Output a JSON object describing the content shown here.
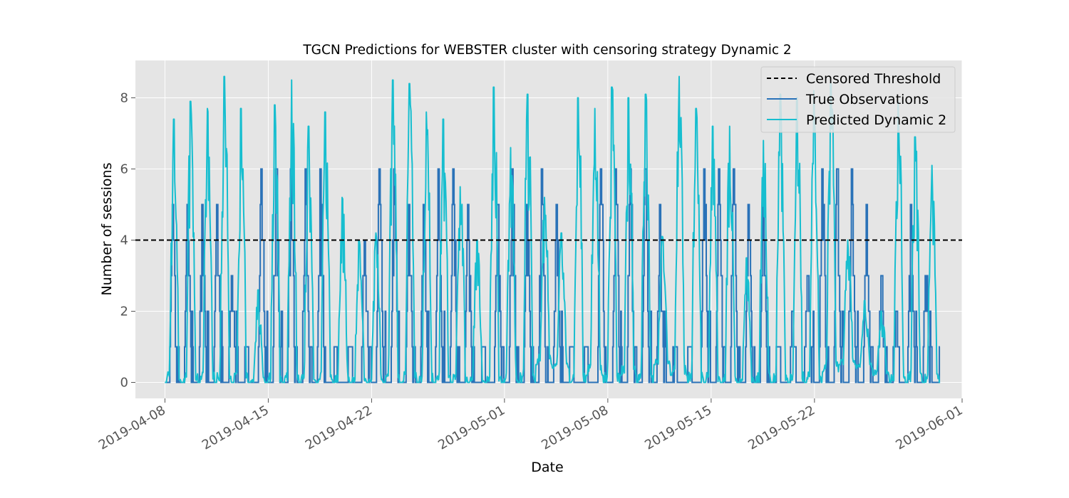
{
  "chart_data": {
    "type": "line",
    "title": "TGCN Predictions for WEBSTER cluster with censoring strategy Dynamic 2",
    "xlabel": "Date",
    "ylabel": "Number of sessions",
    "x_range": [
      "2019-04-06",
      "2019-06-01"
    ],
    "ylim": [
      -0.45,
      9.05
    ],
    "x_ticks": [
      "2019-04-08",
      "2019-04-15",
      "2019-04-22",
      "2019-05-01",
      "2019-05-08",
      "2019-05-15",
      "2019-05-22",
      "2019-06-01"
    ],
    "y_ticks": [
      0,
      2,
      4,
      6,
      8
    ],
    "y_tick_labels": [
      "0",
      "2",
      "4",
      "6",
      "8"
    ],
    "grid": true,
    "legend_position": "top-right",
    "censored_threshold": 4,
    "data_start": "2019-04-08",
    "data_end": "2019-05-30T12:00",
    "series": [
      {
        "name": "Censored Threshold",
        "style": "dashed",
        "color": "#000000",
        "y": 4
      },
      {
        "name": "True Observations",
        "color": "#2a72b8",
        "daily_peaks": [
          5,
          5,
          5,
          5,
          3,
          1,
          6,
          6,
          6,
          6,
          6,
          1,
          1,
          4,
          6,
          6,
          5,
          5,
          6,
          6,
          5,
          1,
          5,
          6,
          5,
          6,
          5,
          1,
          1,
          6,
          6,
          6,
          6,
          5,
          1,
          1,
          6,
          6,
          6,
          5,
          5,
          1,
          2,
          3,
          6,
          6,
          6,
          5,
          3,
          2,
          5,
          3,
          1
        ]
      },
      {
        "name": "Predicted Dynamic 2",
        "color": "#17becf",
        "daily_peaks": [
          7.4,
          7.9,
          7.7,
          8.6,
          7.7,
          2.6,
          7.8,
          8.5,
          7.2,
          7.6,
          5.2,
          4.0,
          4.2,
          8.5,
          8.4,
          7.6,
          7.4,
          5.5,
          4.0,
          8.3,
          6.6,
          8.1,
          5.2,
          4.2,
          8.0,
          7.7,
          8.3,
          8.0,
          8.1,
          4.1,
          8.6,
          7.7,
          7.2,
          7.2,
          3.5,
          6.8,
          8.1,
          8.0,
          8.2,
          8.4,
          4.0,
          2.3,
          2.0,
          7.9,
          6.9,
          6.1
        ],
        "daily_troughs": [
          0,
          0,
          0,
          0,
          0,
          0,
          0,
          0,
          0,
          0,
          0,
          0,
          0,
          0,
          0,
          0,
          0,
          0,
          0,
          0,
          0,
          0,
          0.5,
          0.4,
          0,
          0.2,
          0,
          0.2,
          0,
          0.5,
          0.2,
          0,
          0,
          0,
          0,
          0,
          0,
          0,
          0,
          0.3,
          0.5,
          0.4,
          0.2,
          0,
          0,
          0
        ]
      }
    ]
  }
}
